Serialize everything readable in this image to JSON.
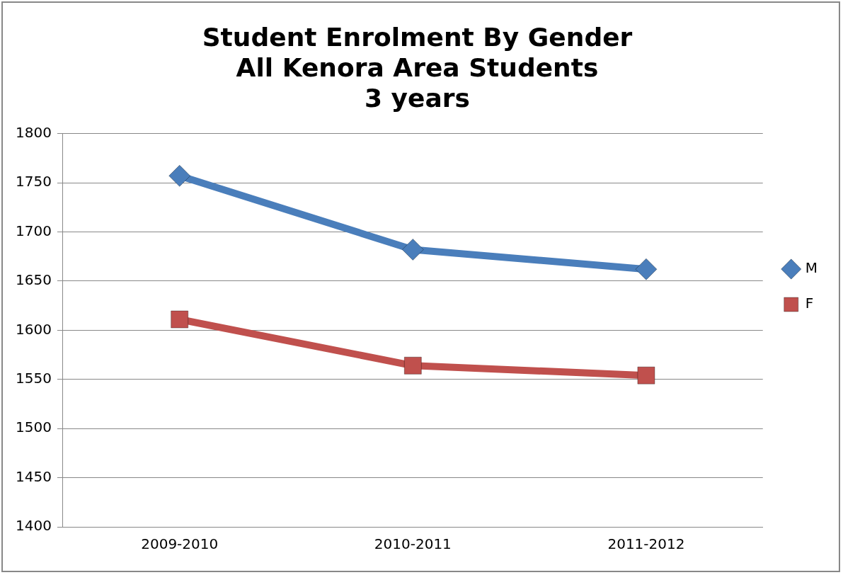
{
  "chart_data": {
    "type": "line",
    "title": "Student Enrolment By Gender\nAll Kenora Area Students\n3 years",
    "categories": [
      "2009-2010",
      "2010-2011",
      "2011-2012"
    ],
    "series": [
      {
        "name": "M",
        "color": "#4a7ebb",
        "marker": "diamond",
        "values": [
          1757,
          1682,
          1662
        ]
      },
      {
        "name": "F",
        "color": "#c0504d",
        "marker": "square",
        "values": [
          1611,
          1564,
          1554
        ]
      }
    ],
    "ylim": [
      1400,
      1800
    ],
    "yticks": [
      1400,
      1450,
      1500,
      1550,
      1600,
      1650,
      1700,
      1750,
      1800
    ],
    "grid": "y",
    "legend": "right",
    "line_style": "solid"
  }
}
